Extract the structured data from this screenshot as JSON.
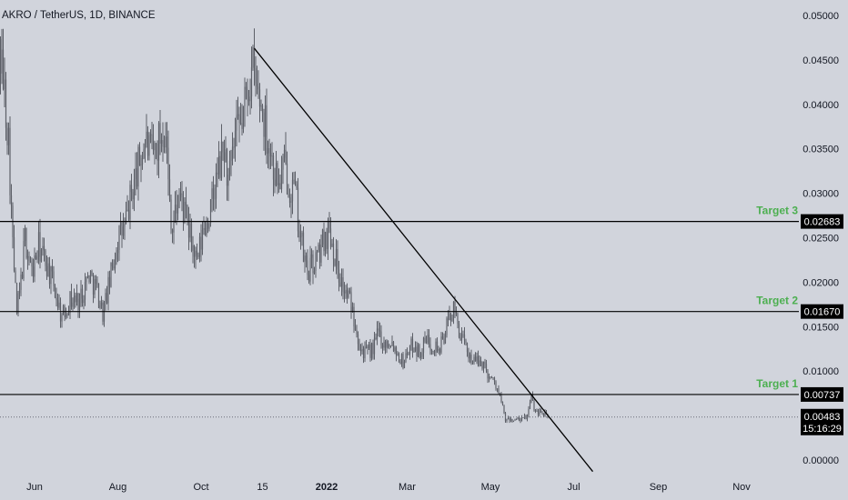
{
  "title": "AKRO / TetherUS, 1D, BINANCE",
  "colors": {
    "background": "#d1d4dc",
    "candles": "#5d6068",
    "lines": "#000000",
    "target_label": "#4caf50",
    "price_tag_bg": "#000000",
    "price_tag_text": "#ffffff"
  },
  "chart_data": {
    "type": "candlestick",
    "symbol": "AKRO / TetherUS",
    "interval": "1D",
    "exchange": "BINANCE",
    "y_axis_ticks": [
      "0.05000",
      "0.04500",
      "0.04000",
      "0.03500",
      "0.03000",
      "0.02500",
      "0.02000",
      "0.01500",
      "0.01000",
      "0.00500",
      "0.00000"
    ],
    "ylim": [
      0.0,
      0.05
    ],
    "x_axis_ticks": [
      "Jun",
      "Aug",
      "Oct",
      "15",
      "2022",
      "Mar",
      "May",
      "Jul",
      "Sep",
      "Nov"
    ],
    "price_close_path": [
      [
        "2021-05-02",
        0.052
      ],
      [
        "2021-05-06",
        0.046
      ],
      [
        "2021-05-09",
        0.043
      ],
      [
        "2021-05-13",
        0.036
      ],
      [
        "2021-05-16",
        0.024
      ],
      [
        "2021-05-19",
        0.0165
      ],
      [
        "2021-05-22",
        0.02
      ],
      [
        "2021-05-25",
        0.025
      ],
      [
        "2021-05-30",
        0.021
      ],
      [
        "2021-06-04",
        0.024
      ],
      [
        "2021-06-10",
        0.022
      ],
      [
        "2021-06-16",
        0.019
      ],
      [
        "2021-06-21",
        0.016
      ],
      [
        "2021-06-27",
        0.018
      ],
      [
        "2021-07-04",
        0.018
      ],
      [
        "2021-07-11",
        0.021
      ],
      [
        "2021-07-17",
        0.019
      ],
      [
        "2021-07-21",
        0.0165
      ],
      [
        "2021-07-26",
        0.02
      ],
      [
        "2021-08-01",
        0.025
      ],
      [
        "2021-08-06",
        0.026
      ],
      [
        "2021-08-11",
        0.03
      ],
      [
        "2021-08-16",
        0.033
      ],
      [
        "2021-08-21",
        0.036
      ],
      [
        "2021-08-26",
        0.034
      ],
      [
        "2021-08-31",
        0.036
      ],
      [
        "2021-09-05",
        0.038
      ],
      [
        "2021-09-07",
        0.031
      ],
      [
        "2021-09-10",
        0.026
      ],
      [
        "2021-09-15",
        0.03
      ],
      [
        "2021-09-20",
        0.027
      ],
      [
        "2021-09-23",
        0.025
      ],
      [
        "2021-09-28",
        0.022
      ],
      [
        "2021-10-03",
        0.026
      ],
      [
        "2021-10-08",
        0.028
      ],
      [
        "2021-10-13",
        0.032
      ],
      [
        "2021-10-18",
        0.035
      ],
      [
        "2021-10-21",
        0.031
      ],
      [
        "2021-10-26",
        0.036
      ],
      [
        "2021-10-31",
        0.038
      ],
      [
        "2021-11-04",
        0.042
      ],
      [
        "2021-11-08",
        0.044
      ],
      [
        "2021-11-10",
        0.042
      ],
      [
        "2021-11-14",
        0.04
      ],
      [
        "2021-11-18",
        0.037
      ],
      [
        "2021-11-23",
        0.033
      ],
      [
        "2021-11-27",
        0.031
      ],
      [
        "2021-12-01",
        0.033
      ],
      [
        "2021-12-05",
        0.031
      ],
      [
        "2021-12-09",
        0.03
      ],
      [
        "2021-12-12",
        0.026
      ],
      [
        "2021-12-15",
        0.023
      ],
      [
        "2021-12-18",
        0.021
      ],
      [
        "2021-12-22",
        0.022
      ],
      [
        "2021-12-26",
        0.023
      ],
      [
        "2021-12-30",
        0.025
      ],
      [
        "2022-01-03",
        0.026
      ],
      [
        "2022-01-06",
        0.024
      ],
      [
        "2022-01-10",
        0.021
      ],
      [
        "2022-01-14",
        0.019
      ],
      [
        "2022-01-18",
        0.018
      ],
      [
        "2022-01-22",
        0.0155
      ],
      [
        "2022-01-26",
        0.0125
      ],
      [
        "2022-01-30",
        0.012
      ],
      [
        "2022-02-04",
        0.0125
      ],
      [
        "2022-02-08",
        0.0145
      ],
      [
        "2022-02-12",
        0.013
      ],
      [
        "2022-02-17",
        0.0135
      ],
      [
        "2022-02-22",
        0.012
      ],
      [
        "2022-02-26",
        0.011
      ],
      [
        "2022-03-02",
        0.0125
      ],
      [
        "2022-03-06",
        0.013
      ],
      [
        "2022-03-10",
        0.012
      ],
      [
        "2022-03-15",
        0.0135
      ],
      [
        "2022-03-20",
        0.013
      ],
      [
        "2022-03-25",
        0.0125
      ],
      [
        "2022-03-30",
        0.015
      ],
      [
        "2022-04-03",
        0.017
      ],
      [
        "2022-04-06",
        0.016
      ],
      [
        "2022-04-10",
        0.0135
      ],
      [
        "2022-04-15",
        0.012
      ],
      [
        "2022-04-20",
        0.011
      ],
      [
        "2022-04-25",
        0.011
      ],
      [
        "2022-04-30",
        0.0095
      ],
      [
        "2022-05-05",
        0.0085
      ],
      [
        "2022-05-09",
        0.0065
      ],
      [
        "2022-05-12",
        0.0045
      ],
      [
        "2022-05-16",
        0.0045
      ],
      [
        "2022-05-20",
        0.0045
      ],
      [
        "2022-05-24",
        0.0045
      ],
      [
        "2022-05-28",
        0.005
      ],
      [
        "2022-05-31",
        0.007
      ],
      [
        "2022-06-03",
        0.0055
      ],
      [
        "2022-06-07",
        0.0055
      ],
      [
        "2022-06-12",
        0.00483
      ]
    ],
    "trendline": {
      "from": [
        "2021-11-09",
        0.0463
      ],
      "to": [
        "2022-07-15",
        -0.0013
      ]
    },
    "horizontal_levels": [
      {
        "label": "Target 3",
        "value": 0.02683,
        "tag": "0.02683"
      },
      {
        "label": "Target 2",
        "value": 0.0167,
        "tag": "0.01670"
      },
      {
        "label": "Target 1",
        "value": 0.00737,
        "tag": "0.00737"
      }
    ],
    "current_price": {
      "value": 0.00483,
      "tag": "0.00483",
      "countdown": "15:16:29"
    },
    "grid": false,
    "legend": "none"
  }
}
